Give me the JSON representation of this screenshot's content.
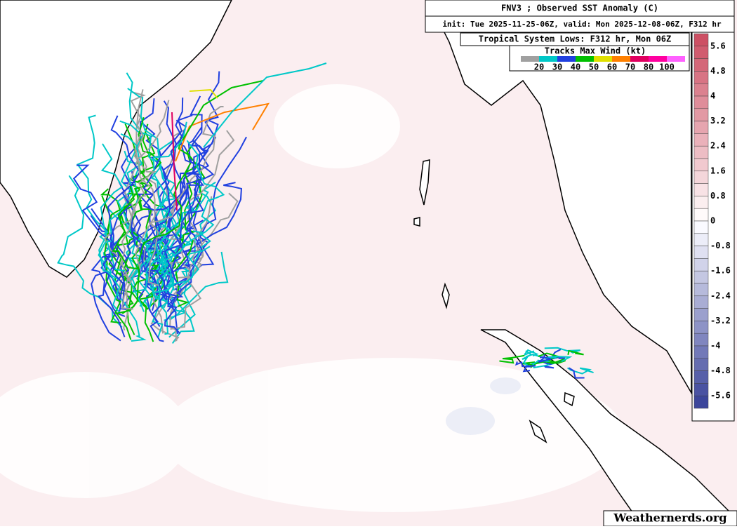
{
  "header": {
    "title": "FNV3 ; Observed SST Anomaly (C)",
    "init": "init: Tue 2025-11-25-06Z, valid: Mon 2025-12-08-06Z, F312 hr"
  },
  "tracks_legend": {
    "title": "Tropical System Lows: F312 hr, Mon 06Z",
    "subtitle": "Tracks Max Wind (kt)",
    "labels": [
      "20",
      "30",
      "40",
      "50",
      "60",
      "70",
      "80",
      "100"
    ]
  },
  "colorbar": {
    "labels": [
      "5.6",
      "4.8",
      "4",
      "3.2",
      "2.4",
      "1.6",
      "0.8",
      "0",
      "-0.8",
      "-1.6",
      "-2.4",
      "-3.2",
      "-4",
      "-4.8",
      "-5.6"
    ]
  },
  "watermark": "Weathernerds.org"
}
